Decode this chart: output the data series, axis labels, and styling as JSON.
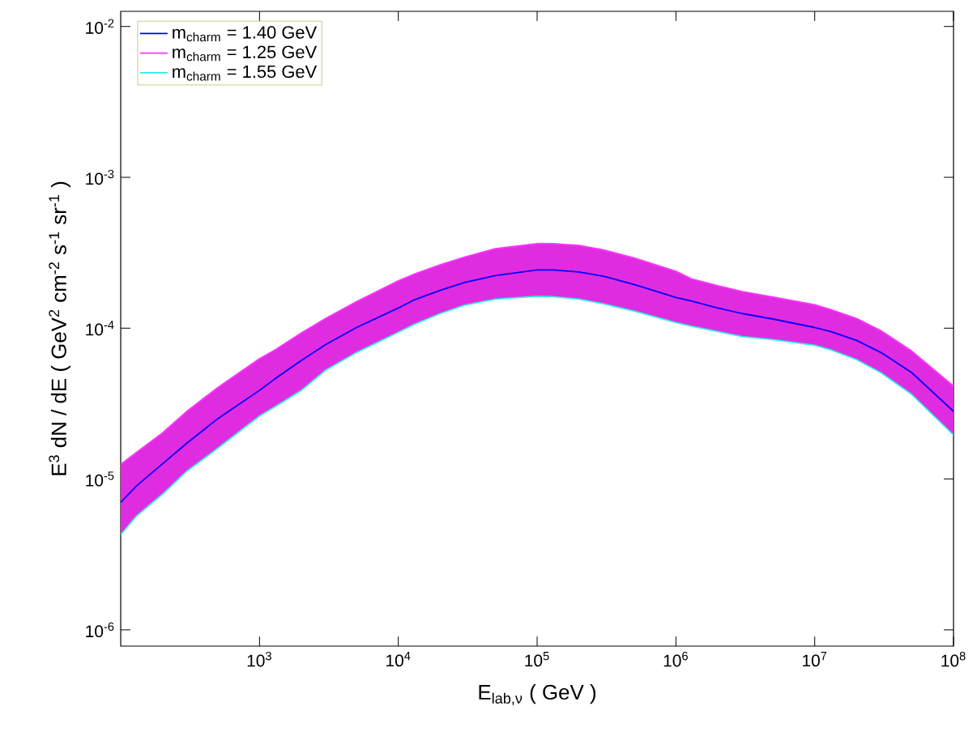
{
  "chart_data": {
    "type": "line",
    "xlabel": "E$_{lab,ν}$    ( GeV )",
    "ylabel": "E$^{3}$  dN / dE    ( GeV$^{2}$ cm$^{-2}$ s$^{-1}$ sr$^{-1}$ )",
    "x": [
      100,
      130,
      200,
      300,
      500,
      1000,
      1300,
      2000,
      3000,
      5000,
      10000,
      13000,
      20000,
      30000,
      50000,
      100000,
      130000,
      200000,
      300000,
      500000,
      1000000,
      1300000,
      2000000,
      3000000,
      5000000,
      10000000,
      13000000,
      20000000,
      30000000,
      50000000,
      100000000
    ],
    "series": [
      {
        "name": "m$_{charm}$ = 1.40 GeV",
        "color": "#0000ff",
        "values": [
          7e-06,
          9e-06,
          1.26e-05,
          1.73e-05,
          2.51e-05,
          3.87e-05,
          4.63e-05,
          6.1e-05,
          7.8e-05,
          0.000101,
          0.000136,
          0.000154,
          0.000178,
          0.000201,
          0.000223,
          0.000243,
          0.000243,
          0.000236,
          0.000221,
          0.000195,
          0.00016,
          0.000151,
          0.000136,
          0.000125,
          0.000115,
          0.000101,
          9.5e-05,
          8.3e-05,
          6.9e-05,
          5.07e-05,
          2.81e-05
        ]
      },
      {
        "name": "m$_{charm}$ = 1.25 GeV",
        "color": "#ff33ff",
        "values": [
          1.25e-05,
          1.5e-05,
          2.02e-05,
          2.81e-05,
          4.04e-05,
          6.28e-05,
          7.19e-05,
          9.3e-05,
          0.000116,
          0.00015,
          0.000206,
          0.000228,
          0.000263,
          0.000296,
          0.000337,
          0.000363,
          0.000363,
          0.000354,
          0.00033,
          0.000292,
          0.000238,
          0.000212,
          0.000191,
          0.000175,
          0.000161,
          0.000143,
          0.000133,
          0.000116,
          9.6e-05,
          7.05e-05,
          4.12e-05
        ],
        "upper": [
          1.25e-05,
          1.5e-05,
          2.02e-05,
          2.81e-05,
          4.04e-05,
          6.28e-05,
          7.19e-05,
          9.3e-05,
          0.000116,
          0.00015,
          0.000206,
          0.000228,
          0.000263,
          0.000296,
          0.000337,
          0.000363,
          0.000363,
          0.000354,
          0.00033,
          0.000292,
          0.000238,
          0.000212,
          0.000191,
          0.000175,
          0.000161,
          0.000143,
          0.000133,
          0.000116,
          9.6e-05,
          7.05e-05,
          4.12e-05
        ],
        "lower": [
          4.28e-06,
          5.7e-06,
          7.94e-06,
          1.13e-05,
          1.6e-05,
          2.62e-05,
          3.03e-05,
          3.87e-05,
          5.28e-05,
          6.9e-05,
          9.4e-05,
          0.000106,
          0.000125,
          0.000142,
          0.000156,
          0.000163,
          0.000162,
          0.000156,
          0.000145,
          0.00013,
          0.000109,
          0.000103,
          9.5e-05,
          8.8e-05,
          8.4e-05,
          7.7e-05,
          7.2e-05,
          6.2e-05,
          5.07e-05,
          3.64e-05,
          1.96e-05
        ]
      },
      {
        "name": "m$_{charm}$ = 1.55 GeV",
        "color": "#33e6e6",
        "values": [
          4.28e-06,
          5.7e-06,
          7.94e-06,
          1.13e-05,
          1.6e-05,
          2.62e-05,
          3.03e-05,
          3.87e-05,
          5.28e-05,
          6.9e-05,
          9.4e-05,
          0.000106,
          0.000125,
          0.000142,
          0.000156,
          0.000163,
          0.000162,
          0.000156,
          0.000145,
          0.00013,
          0.000109,
          0.000103,
          9.5e-05,
          8.8e-05,
          8.4e-05,
          7.7e-05,
          7.2e-05,
          6.2e-05,
          5.07e-05,
          3.64e-05,
          1.96e-05
        ]
      }
    ],
    "xlim": [
      100,
      100000000
    ],
    "ylim": [
      7.8e-07,
      0.0126
    ],
    "xticks": [
      {
        "value": 1000,
        "label": "10$^{3}$"
      },
      {
        "value": 10000,
        "label": "10$^{4}$"
      },
      {
        "value": 100000,
        "label": "10$^{5}$"
      },
      {
        "value": 1000000,
        "label": "10$^{6}$"
      },
      {
        "value": 10000000,
        "label": "10$^{7}$"
      },
      {
        "value": 100000000,
        "label": "10$^{8}$"
      }
    ],
    "yticks": [
      {
        "value": 1e-06,
        "label": "10$^{-6}$"
      },
      {
        "value": 1e-05,
        "label": "10$^{-5}$"
      },
      {
        "value": 0.0001,
        "label": "10$^{-4}$"
      },
      {
        "value": 0.001,
        "label": "10$^{-3}$"
      },
      {
        "value": 0.01,
        "label": "10$^{-2}$"
      }
    ],
    "log": "xy",
    "legend": "top left"
  }
}
